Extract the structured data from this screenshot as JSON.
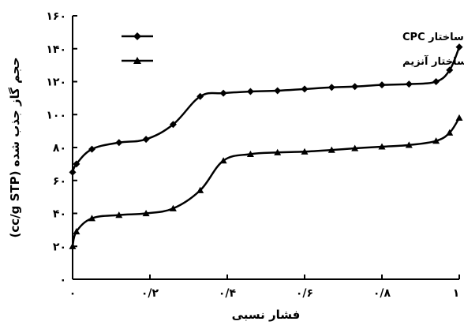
{
  "chart_data": {
    "type": "line",
    "xlabel": "فشار نسبی",
    "ylabel": "حجم گاز جذب شده (cc/g STP)",
    "xlim": [
      0,
      1
    ],
    "ylim": [
      0,
      160
    ],
    "x_ticks": [
      {
        "value": 0,
        "label": "۰"
      },
      {
        "value": 0.2,
        "label": "۰/۲"
      },
      {
        "value": 0.4,
        "label": "۰/۴"
      },
      {
        "value": 0.6,
        "label": "۰/۶"
      },
      {
        "value": 0.8,
        "label": "۰/۸"
      },
      {
        "value": 1,
        "label": "۱"
      }
    ],
    "y_ticks": [
      {
        "value": 0,
        "label": "۰"
      },
      {
        "value": 20,
        "label": "۲۰"
      },
      {
        "value": 40,
        "label": "۴۰"
      },
      {
        "value": 60,
        "label": "۶۰"
      },
      {
        "value": 80,
        "label": "۸۰"
      },
      {
        "value": 100,
        "label": "۱۰۰"
      },
      {
        "value": 120,
        "label": "۱۲۰"
      },
      {
        "value": 140,
        "label": "۱۴۰"
      },
      {
        "value": 160,
        "label": "۱۶۰"
      }
    ],
    "grid": false,
    "legend_position": "top-right",
    "series": [
      {
        "name": "سیلیکای ساخته شده با قالب ساختار CPC",
        "marker": "diamond",
        "color": "#000000",
        "points": [
          {
            "x": 0.0,
            "y": 65
          },
          {
            "x": 0.01,
            "y": 70
          },
          {
            "x": 0.05,
            "y": 79
          },
          {
            "x": 0.12,
            "y": 83
          },
          {
            "x": 0.19,
            "y": 85
          },
          {
            "x": 0.26,
            "y": 94
          },
          {
            "x": 0.33,
            "y": 111
          },
          {
            "x": 0.39,
            "y": 113
          },
          {
            "x": 0.46,
            "y": 114
          },
          {
            "x": 0.53,
            "y": 114.5
          },
          {
            "x": 0.6,
            "y": 115.5
          },
          {
            "x": 0.67,
            "y": 116.5
          },
          {
            "x": 0.73,
            "y": 117
          },
          {
            "x": 0.8,
            "y": 118
          },
          {
            "x": 0.87,
            "y": 118.5
          },
          {
            "x": 0.94,
            "y": 120
          },
          {
            "x": 0.975,
            "y": 127
          },
          {
            "x": 1.0,
            "y": 141
          }
        ]
      },
      {
        "name": "سیلیکای ساخته شده با قالب ساختار آنزیم",
        "marker": "triangle",
        "color": "#000000",
        "points": [
          {
            "x": 0.0,
            "y": 20
          },
          {
            "x": 0.01,
            "y": 29
          },
          {
            "x": 0.05,
            "y": 37
          },
          {
            "x": 0.12,
            "y": 39
          },
          {
            "x": 0.19,
            "y": 40
          },
          {
            "x": 0.26,
            "y": 43
          },
          {
            "x": 0.33,
            "y": 54
          },
          {
            "x": 0.39,
            "y": 72
          },
          {
            "x": 0.46,
            "y": 76
          },
          {
            "x": 0.53,
            "y": 77
          },
          {
            "x": 0.6,
            "y": 77.5
          },
          {
            "x": 0.67,
            "y": 78.5
          },
          {
            "x": 0.73,
            "y": 79.5
          },
          {
            "x": 0.8,
            "y": 80.5
          },
          {
            "x": 0.87,
            "y": 81.5
          },
          {
            "x": 0.94,
            "y": 84
          },
          {
            "x": 0.975,
            "y": 89
          },
          {
            "x": 1.0,
            "y": 98
          }
        ]
      }
    ]
  }
}
